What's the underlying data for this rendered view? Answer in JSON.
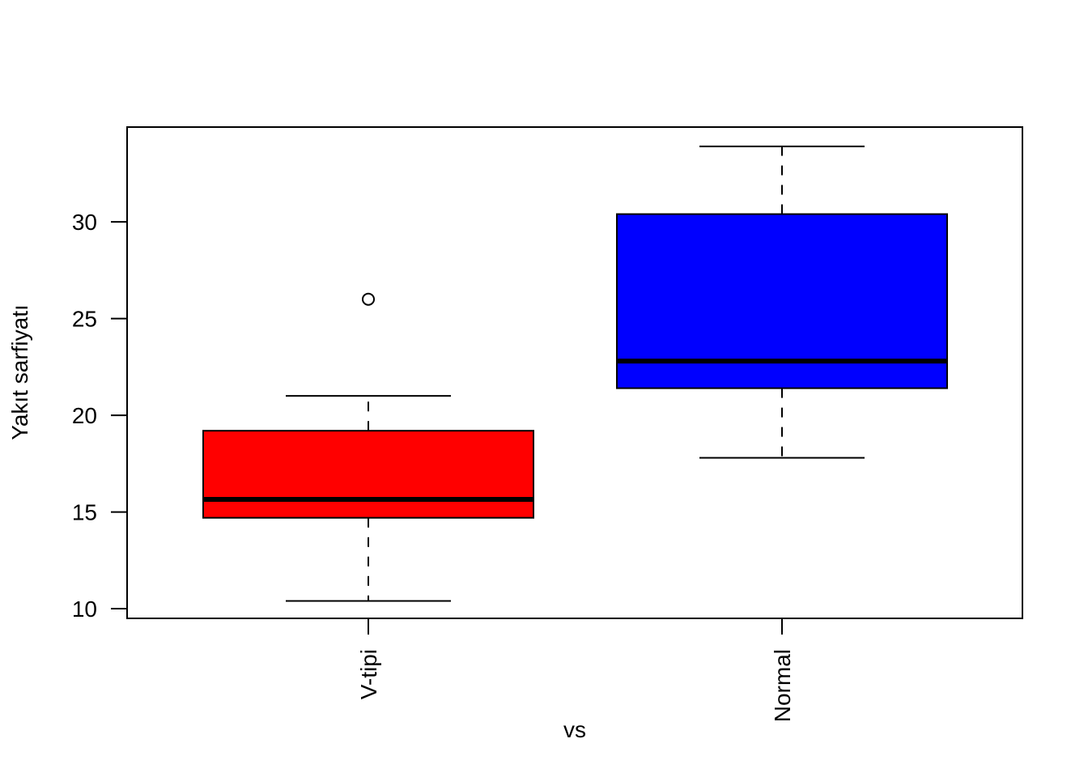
{
  "chart_data": {
    "type": "boxplot",
    "title": "",
    "xlabel": "vs",
    "ylabel": "Yakıt sarfiyatı",
    "ylim": [
      9.5,
      34.9
    ],
    "y_ticks": [
      10,
      15,
      20,
      25,
      30
    ],
    "grid": false,
    "categories": [
      "V-tipi",
      "Normal"
    ],
    "boxes": [
      {
        "category": "V-tipi",
        "fill": "#ff0000",
        "whisker_low": 10.4,
        "q1": 14.7,
        "median": 15.65,
        "q3": 19.2,
        "whisker_high": 21.0,
        "outliers": [
          26.0
        ]
      },
      {
        "category": "Normal",
        "fill": "#0000ff",
        "whisker_low": 17.8,
        "q1": 21.4,
        "median": 22.8,
        "q3": 30.4,
        "whisker_high": 33.9,
        "outliers": []
      }
    ]
  }
}
